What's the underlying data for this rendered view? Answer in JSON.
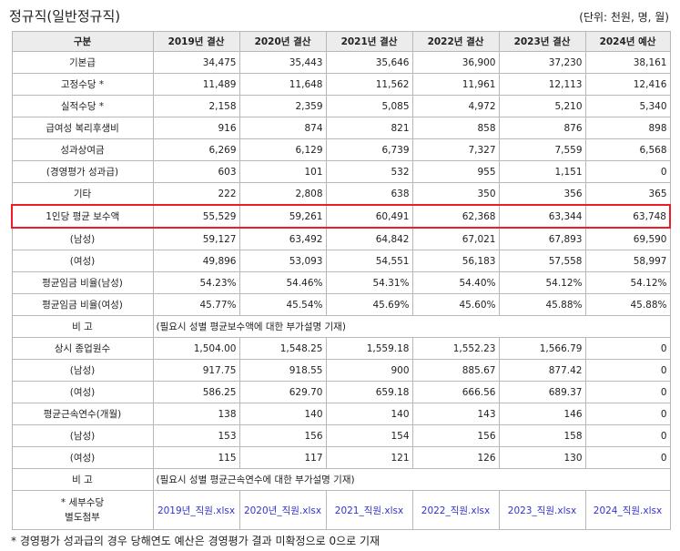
{
  "page": {
    "title": "정규직(일반정규직)",
    "unit": "(단위: 천원, 명, 월)",
    "footnote": "* 경영평가 성과급의 경우 당해연도 예산은 경영평가 결과 미확정으로 0으로 기재"
  },
  "table": {
    "headers": [
      "구분",
      "2019년 결산",
      "2020년 결산",
      "2021년 결산",
      "2022년 결산",
      "2023년 결산",
      "2024년 예산"
    ],
    "rows": [
      {
        "label": "기본급",
        "values": [
          "34,475",
          "35,443",
          "35,646",
          "36,900",
          "37,230",
          "38,161"
        ]
      },
      {
        "label": "고정수당 *",
        "values": [
          "11,489",
          "11,648",
          "11,562",
          "11,961",
          "12,113",
          "12,416"
        ]
      },
      {
        "label": "실적수당 *",
        "values": [
          "2,158",
          "2,359",
          "5,085",
          "4,972",
          "5,210",
          "5,340"
        ]
      },
      {
        "label": "급여성 복리후생비",
        "values": [
          "916",
          "874",
          "821",
          "858",
          "876",
          "898"
        ]
      },
      {
        "label": "성과상여금",
        "values": [
          "6,269",
          "6,129",
          "6,739",
          "7,327",
          "7,559",
          "6,568"
        ]
      },
      {
        "label": "(경영평가 성과급)",
        "values": [
          "603",
          "101",
          "532",
          "955",
          "1,151",
          "0"
        ]
      },
      {
        "label": "기타",
        "values": [
          "222",
          "2,808",
          "638",
          "350",
          "356",
          "365"
        ]
      },
      {
        "label": "1인당 평균 보수액",
        "values": [
          "55,529",
          "59,261",
          "60,491",
          "62,368",
          "63,344",
          "63,748"
        ],
        "highlight": true
      },
      {
        "label": "(남성)",
        "values": [
          "59,127",
          "63,492",
          "64,842",
          "67,021",
          "67,893",
          "69,590"
        ]
      },
      {
        "label": "(여성)",
        "values": [
          "49,896",
          "53,093",
          "54,551",
          "56,183",
          "57,558",
          "58,997"
        ]
      },
      {
        "label": "평균임금 비율(남성)",
        "values": [
          "54.23%",
          "54.46%",
          "54.31%",
          "54.40%",
          "54.12%",
          "54.12%"
        ]
      },
      {
        "label": "평균임금 비율(여성)",
        "values": [
          "45.77%",
          "45.54%",
          "45.69%",
          "45.60%",
          "45.88%",
          "45.88%"
        ]
      },
      {
        "label": "비 고",
        "remark": "(필요시 성별 평균보수액에 대한 부가설명 기재)"
      },
      {
        "label": "상시 종업원수",
        "values": [
          "1,504.00",
          "1,548.25",
          "1,559.18",
          "1,552.23",
          "1,566.79",
          "0"
        ]
      },
      {
        "label": "(남성)",
        "values": [
          "917.75",
          "918.55",
          "900",
          "885.67",
          "877.42",
          "0"
        ]
      },
      {
        "label": "(여성)",
        "values": [
          "586.25",
          "629.70",
          "659.18",
          "666.56",
          "689.37",
          "0"
        ]
      },
      {
        "label": "평균근속연수(개월)",
        "values": [
          "138",
          "140",
          "140",
          "143",
          "146",
          "0"
        ]
      },
      {
        "label": "(남성)",
        "values": [
          "153",
          "156",
          "154",
          "156",
          "158",
          "0"
        ]
      },
      {
        "label": "(여성)",
        "values": [
          "115",
          "117",
          "121",
          "126",
          "130",
          "0"
        ]
      },
      {
        "label": "비 고",
        "remark": "(필요시 성별 평균근속연수에 대한 부가설명 기재)"
      }
    ],
    "attachments": {
      "label_line1": "* 세부수당",
      "label_line2": "별도첨부",
      "links": [
        "2019년_직원.xlsx",
        "2020년_직원.xlsx",
        "2021_직원.xlsx",
        "2022_직원.xlsx",
        "2023_직원.xlsx",
        "2024_직원.xlsx"
      ]
    }
  },
  "colors": {
    "highlight_border": "#ee1c24",
    "header_bg": "#ececec",
    "link": "#3333cc",
    "grid": "#b8b8b8"
  }
}
